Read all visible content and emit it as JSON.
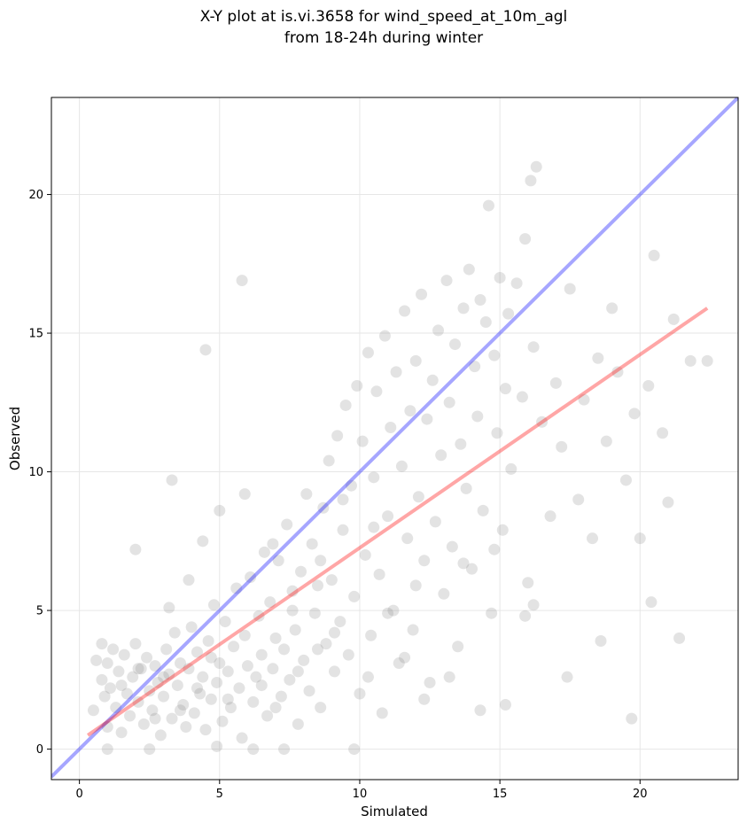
{
  "chart_data": {
    "type": "scatter",
    "title_lines": [
      "X-Y plot at is.vi.3658 for wind_speed_at_10m_agl",
      "from 18-24h during winter"
    ],
    "xlabel": "Simulated",
    "ylabel": "Observed",
    "xlim": [
      -1.0,
      23.5
    ],
    "ylim": [
      -1.1,
      23.5
    ],
    "xticks": [
      0,
      5,
      10,
      15,
      20
    ],
    "yticks": [
      0,
      5,
      10,
      15,
      20
    ],
    "grid": true,
    "colors": {
      "points": "#808080",
      "identity_line": "#0000ff",
      "fit_line": "#ff0000",
      "grid": "#e6e6e6"
    },
    "series": [
      {
        "name": "",
        "kind": "scatter",
        "points": [
          [
            0.5,
            1.4
          ],
          [
            0.6,
            3.2
          ],
          [
            0.8,
            2.5
          ],
          [
            0.9,
            1.9
          ],
          [
            1.0,
            0.8
          ],
          [
            1.0,
            3.1
          ],
          [
            1.1,
            2.2
          ],
          [
            1.2,
            3.6
          ],
          [
            1.3,
            1.5
          ],
          [
            1.4,
            2.8
          ],
          [
            1.5,
            0.6
          ],
          [
            1.6,
            3.4
          ],
          [
            1.7,
            2.0
          ],
          [
            1.8,
            1.2
          ],
          [
            1.9,
            2.6
          ],
          [
            2.0,
            3.8
          ],
          [
            2.1,
            1.7
          ],
          [
            2.2,
            2.9
          ],
          [
            2.3,
            0.9
          ],
          [
            2.4,
            3.3
          ],
          [
            2.5,
            2.1
          ],
          [
            2.6,
            1.4
          ],
          [
            2.7,
            3.0
          ],
          [
            2.8,
            2.4
          ],
          [
            2.9,
            0.5
          ],
          [
            3.0,
            1.9
          ],
          [
            3.1,
            3.6
          ],
          [
            3.2,
            2.7
          ],
          [
            3.3,
            1.1
          ],
          [
            3.4,
            4.2
          ],
          [
            3.5,
            2.3
          ],
          [
            3.6,
            3.1
          ],
          [
            3.7,
            1.6
          ],
          [
            3.8,
            0.8
          ],
          [
            3.9,
            2.9
          ],
          [
            4.0,
            4.4
          ],
          [
            4.1,
            1.3
          ],
          [
            4.2,
            3.5
          ],
          [
            4.3,
            2.0
          ],
          [
            4.4,
            2.6
          ],
          [
            4.5,
            0.7
          ],
          [
            4.6,
            3.9
          ],
          [
            4.7,
            1.8
          ],
          [
            4.8,
            5.2
          ],
          [
            4.9,
            2.4
          ],
          [
            5.0,
            3.1
          ],
          [
            5.1,
            1.0
          ],
          [
            5.2,
            4.6
          ],
          [
            5.3,
            2.8
          ],
          [
            5.4,
            1.5
          ],
          [
            5.5,
            3.7
          ],
          [
            5.6,
            5.8
          ],
          [
            5.7,
            2.2
          ],
          [
            5.8,
            0.4
          ],
          [
            5.9,
            4.1
          ],
          [
            6.0,
            3.0
          ],
          [
            6.1,
            6.2
          ],
          [
            6.2,
            1.7
          ],
          [
            6.3,
            2.6
          ],
          [
            6.4,
            4.8
          ],
          [
            6.5,
            3.4
          ],
          [
            6.6,
            7.1
          ],
          [
            6.7,
            1.2
          ],
          [
            6.8,
            5.3
          ],
          [
            6.9,
            2.9
          ],
          [
            7.0,
            4.0
          ],
          [
            7.1,
            6.8
          ],
          [
            7.2,
            1.9
          ],
          [
            7.3,
            3.6
          ],
          [
            7.4,
            8.1
          ],
          [
            7.5,
            2.5
          ],
          [
            7.6,
            5.7
          ],
          [
            7.7,
            4.3
          ],
          [
            7.8,
            0.9
          ],
          [
            7.9,
            6.4
          ],
          [
            8.0,
            3.2
          ],
          [
            8.1,
            9.2
          ],
          [
            8.2,
            2.1
          ],
          [
            8.3,
            7.4
          ],
          [
            8.4,
            4.9
          ],
          [
            8.5,
            5.9
          ],
          [
            8.6,
            1.5
          ],
          [
            8.7,
            8.7
          ],
          [
            8.8,
            3.8
          ],
          [
            8.9,
            10.4
          ],
          [
            9.0,
            6.1
          ],
          [
            9.1,
            2.8
          ],
          [
            9.2,
            11.3
          ],
          [
            9.3,
            4.6
          ],
          [
            9.4,
            7.9
          ],
          [
            9.5,
            12.4
          ],
          [
            9.6,
            3.4
          ],
          [
            9.7,
            9.5
          ],
          [
            9.8,
            5.5
          ],
          [
            9.9,
            13.1
          ],
          [
            10.0,
            2.0
          ],
          [
            10.1,
            11.1
          ],
          [
            10.2,
            7.0
          ],
          [
            10.3,
            14.3
          ],
          [
            10.4,
            4.1
          ],
          [
            10.5,
            9.8
          ],
          [
            10.6,
            12.9
          ],
          [
            10.7,
            6.3
          ],
          [
            10.8,
            1.3
          ],
          [
            10.9,
            14.9
          ],
          [
            11.0,
            8.4
          ],
          [
            11.1,
            11.6
          ],
          [
            11.2,
            5.0
          ],
          [
            11.3,
            13.6
          ],
          [
            11.4,
            3.1
          ],
          [
            11.5,
            10.2
          ],
          [
            11.6,
            15.8
          ],
          [
            11.7,
            7.6
          ],
          [
            11.8,
            12.2
          ],
          [
            11.9,
            4.3
          ],
          [
            12.0,
            14.0
          ],
          [
            12.1,
            9.1
          ],
          [
            12.2,
            16.4
          ],
          [
            12.3,
            6.8
          ],
          [
            12.4,
            11.9
          ],
          [
            12.5,
            2.4
          ],
          [
            12.6,
            13.3
          ],
          [
            12.7,
            8.2
          ],
          [
            12.8,
            15.1
          ],
          [
            12.9,
            10.6
          ],
          [
            13.0,
            5.6
          ],
          [
            13.1,
            16.9
          ],
          [
            13.2,
            12.5
          ],
          [
            13.3,
            7.3
          ],
          [
            13.4,
            14.6
          ],
          [
            13.5,
            3.7
          ],
          [
            13.6,
            11.0
          ],
          [
            13.7,
            15.9
          ],
          [
            13.8,
            9.4
          ],
          [
            13.9,
            17.3
          ],
          [
            14.0,
            6.5
          ],
          [
            14.1,
            13.8
          ],
          [
            14.2,
            12.0
          ],
          [
            14.3,
            16.2
          ],
          [
            14.4,
            8.6
          ],
          [
            14.5,
            15.4
          ],
          [
            14.6,
            19.6
          ],
          [
            14.7,
            4.9
          ],
          [
            14.8,
            14.2
          ],
          [
            14.9,
            11.4
          ],
          [
            15.0,
            17.0
          ],
          [
            15.1,
            7.9
          ],
          [
            15.2,
            13.0
          ],
          [
            15.3,
            15.7
          ],
          [
            15.4,
            10.1
          ],
          [
            15.6,
            16.8
          ],
          [
            15.8,
            12.7
          ],
          [
            15.9,
            18.4
          ],
          [
            16.0,
            6.0
          ],
          [
            16.2,
            14.5
          ],
          [
            16.3,
            21.0
          ],
          [
            16.5,
            11.8
          ],
          [
            16.8,
            8.4
          ],
          [
            17.0,
            13.2
          ],
          [
            17.2,
            10.9
          ],
          [
            17.5,
            16.6
          ],
          [
            17.8,
            9.0
          ],
          [
            18.0,
            12.6
          ],
          [
            18.3,
            7.6
          ],
          [
            18.5,
            14.1
          ],
          [
            18.8,
            11.1
          ],
          [
            19.0,
            15.9
          ],
          [
            19.2,
            13.6
          ],
          [
            19.5,
            9.7
          ],
          [
            19.8,
            12.1
          ],
          [
            20.0,
            7.6
          ],
          [
            20.3,
            13.1
          ],
          [
            20.5,
            17.8
          ],
          [
            20.8,
            11.4
          ],
          [
            21.0,
            8.9
          ],
          [
            21.2,
            15.5
          ],
          [
            21.4,
            4.0
          ],
          [
            21.8,
            14.0
          ],
          [
            22.4,
            14.0
          ],
          [
            16.1,
            20.5
          ],
          [
            5.8,
            16.9
          ],
          [
            4.5,
            14.4
          ],
          [
            3.3,
            9.7
          ],
          [
            2.0,
            7.2
          ],
          [
            1.0,
            0.0
          ],
          [
            2.5,
            0.0
          ],
          [
            4.9,
            0.1
          ],
          [
            6.2,
            0.0
          ],
          [
            7.3,
            0.0
          ],
          [
            9.8,
            0.0
          ],
          [
            0.8,
            3.8
          ],
          [
            1.5,
            2.3
          ],
          [
            2.1,
            2.9
          ],
          [
            2.7,
            1.1
          ],
          [
            3.0,
            2.6
          ],
          [
            3.6,
            1.4
          ],
          [
            4.2,
            2.2
          ],
          [
            4.7,
            3.3
          ],
          [
            5.3,
            1.8
          ],
          [
            6.5,
            2.3
          ],
          [
            7.0,
            1.5
          ],
          [
            7.8,
            2.8
          ],
          [
            8.5,
            3.6
          ],
          [
            9.1,
            4.2
          ],
          [
            10.3,
            2.6
          ],
          [
            11.6,
            3.3
          ],
          [
            12.3,
            1.8
          ],
          [
            13.2,
            2.6
          ],
          [
            14.3,
            1.4
          ],
          [
            15.2,
            1.6
          ],
          [
            16.2,
            5.2
          ],
          [
            17.4,
            2.6
          ],
          [
            18.6,
            3.9
          ],
          [
            19.7,
            1.1
          ],
          [
            20.4,
            5.3
          ],
          [
            11.0,
            4.9
          ],
          [
            12.0,
            5.9
          ],
          [
            13.7,
            6.7
          ],
          [
            14.8,
            7.2
          ],
          [
            15.9,
            4.8
          ],
          [
            10.5,
            8.0
          ],
          [
            9.4,
            9.0
          ],
          [
            8.6,
            6.8
          ],
          [
            7.6,
            5.0
          ],
          [
            6.9,
            7.4
          ],
          [
            5.9,
            9.2
          ],
          [
            5.0,
            8.6
          ],
          [
            4.4,
            7.5
          ],
          [
            3.9,
            6.1
          ],
          [
            3.2,
            5.1
          ]
        ]
      },
      {
        "name": "",
        "kind": "line",
        "label": "identity",
        "points": [
          [
            -1.0,
            -1.0
          ],
          [
            23.5,
            23.5
          ]
        ]
      },
      {
        "name": "",
        "kind": "line",
        "label": "fit",
        "points": [
          [
            0.3,
            0.5
          ],
          [
            22.4,
            15.9
          ]
        ]
      }
    ]
  }
}
